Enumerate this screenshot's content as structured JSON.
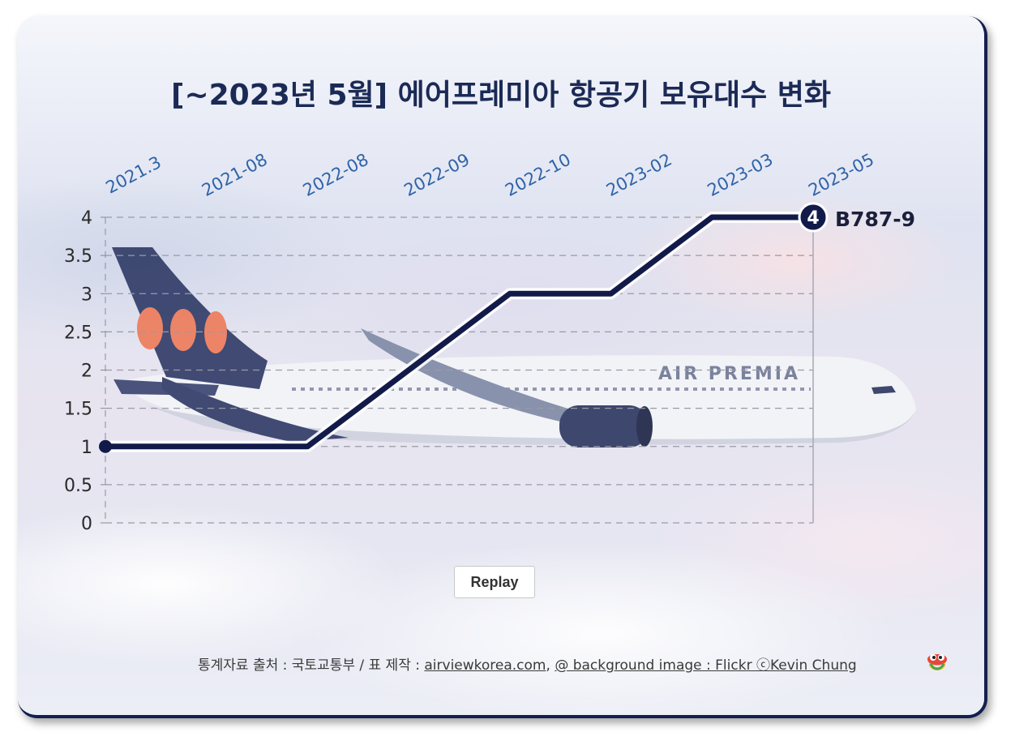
{
  "title": "[~2023년 5월] 에어프레미아 항공기 보유대수 변화",
  "chart_data": {
    "type": "line",
    "categories": [
      "2021.3",
      "2021-08",
      "2022-08",
      "2022-09",
      "2022-10",
      "2023-02",
      "2023-03",
      "2023-05"
    ],
    "series": [
      {
        "values": [
          1,
          1,
          1,
          2,
          3,
          3,
          4,
          4
        ]
      }
    ],
    "y_ticks": [
      "0",
      "0.5",
      "1",
      "1.5",
      "2",
      "2.5",
      "3",
      "3.5",
      "4"
    ],
    "ylim": [
      0,
      4
    ],
    "end_value_label": "4",
    "end_series_label": "B787-9",
    "grid": true,
    "line_color": "#121a4a",
    "category_label_color": "#2f63a8"
  },
  "background_image": {
    "subject": "Air Premia Boeing 787-9 above clouds",
    "fuselage_text": "AIR PREMIA"
  },
  "replay_label": "Replay",
  "credit": {
    "prefix": "통계자료 출처 : 국토교통부 / 표 제작 : ",
    "site": "airviewkorea.com",
    "sep": ", ",
    "bg": "@ background image : Flickr ⓒKevin Chung"
  },
  "mascot_icon": "bird-mascot-icon"
}
